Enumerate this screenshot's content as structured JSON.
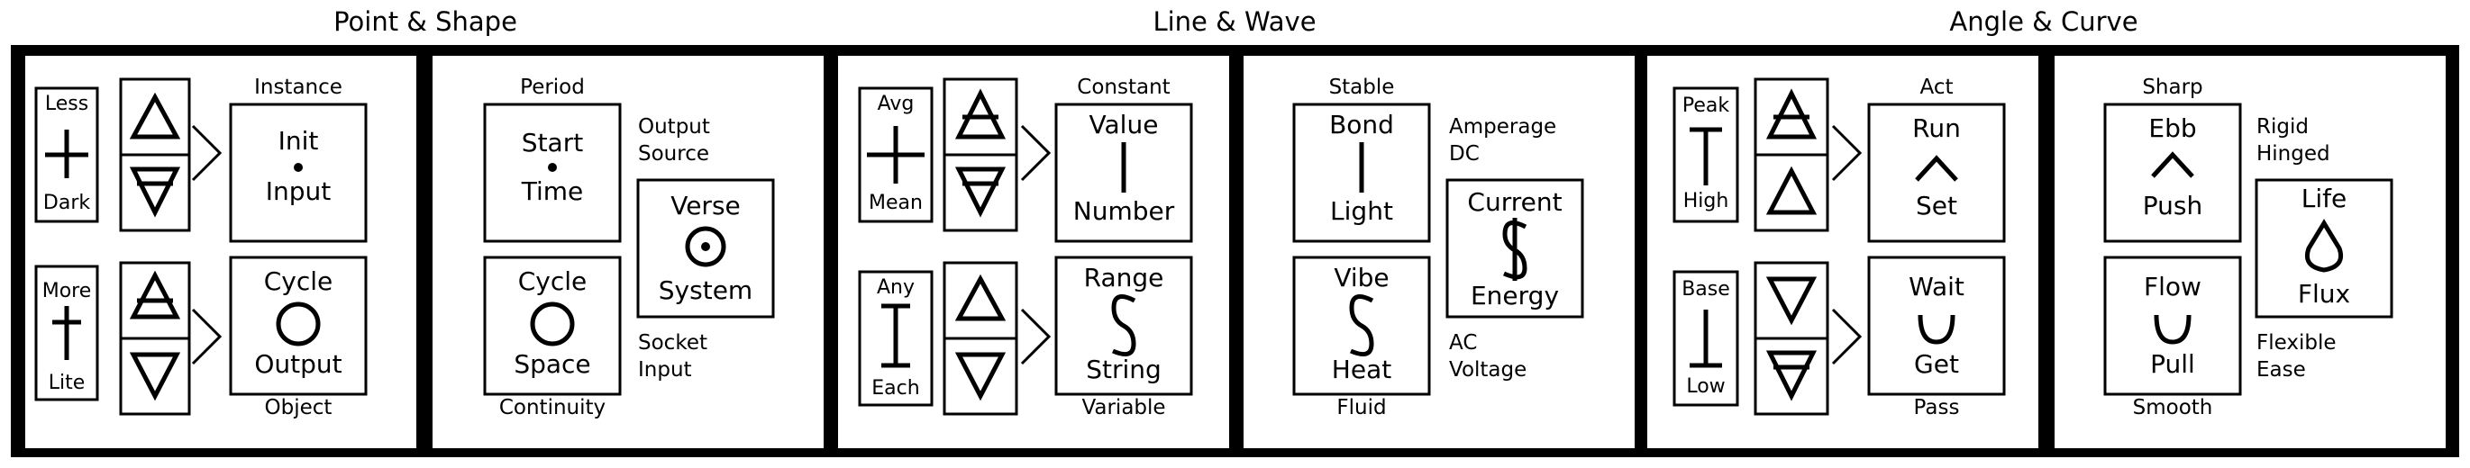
{
  "titles": {
    "left": "Point & Shape",
    "mid": "Line & Wave",
    "right": "Angle & Curve"
  },
  "panel1": {
    "top_box": {
      "label_top": "Less",
      "label_bottom": "Dark"
    },
    "bottom_box": {
      "label_top": "More",
      "label_bottom": "Lite"
    },
    "instance_label": "Instance",
    "object_label": "Object",
    "main_top": {
      "line1": "Init",
      "line2": "Input"
    },
    "main_bottom": {
      "line1": "Cycle",
      "line2": "Output"
    }
  },
  "panel2": {
    "period_label": "Period",
    "continuity_label": "Continuity",
    "box_top": {
      "line1": "Start",
      "line2": "Time"
    },
    "box_bottom": {
      "line1": "Cycle",
      "line2": "Space"
    },
    "right_top_label": [
      "Output",
      "Source"
    ],
    "right_box": {
      "line1": "Verse",
      "line2": "System"
    },
    "right_bottom_label": [
      "Socket",
      "Input"
    ]
  },
  "panel3": {
    "top_box": {
      "label_top": "Avg",
      "label_bottom": "Mean"
    },
    "bottom_box": {
      "label_top": "Any",
      "label_bottom": "Each"
    },
    "constant_label": "Constant",
    "variable_label": "Variable",
    "main_top": {
      "line1": "Value",
      "line2": "Number"
    },
    "main_bottom": {
      "line1": "Range",
      "line2": "String"
    }
  },
  "panel4": {
    "stable_label": "Stable",
    "fluid_label": "Fluid",
    "box_top": {
      "line1": "Bond",
      "line2": "Light"
    },
    "box_bottom": {
      "line1": "Vibe",
      "line2": "Heat"
    },
    "right_top_label": [
      "Amperage",
      "DC"
    ],
    "right_box": {
      "line1": "Current",
      "line2": "Energy"
    },
    "right_bottom_label": [
      "AC",
      "Voltage"
    ]
  },
  "panel5": {
    "top_box": {
      "label_top": "Peak",
      "label_bottom": "High"
    },
    "bottom_box": {
      "label_top": "Base",
      "label_bottom": "Low"
    },
    "act_label": "Act",
    "pass_label": "Pass",
    "main_top": {
      "line1": "Run",
      "line2": "Set"
    },
    "main_bottom": {
      "line1": "Wait",
      "line2": "Get"
    }
  },
  "panel6": {
    "sharp_label": "Sharp",
    "smooth_label": "Smooth",
    "box_top": {
      "line1": "Ebb",
      "line2": "Push"
    },
    "box_bottom": {
      "line1": "Flow",
      "line2": "Pull"
    },
    "right_top_label": [
      "Rigid",
      "Hinged"
    ],
    "right_box": {
      "line1": "Life",
      "line2": "Flux"
    },
    "right_bottom_label": [
      "Flexible",
      "Ease"
    ]
  },
  "icons": [
    "plus-icon",
    "dagger-icon",
    "up-triangle-icon",
    "down-triangle-icon",
    "up-triangle-bar-icon",
    "down-triangle-bar-icon",
    "dot-icon",
    "circle-icon",
    "circled-dot-icon",
    "vertical-bar-icon",
    "s-wave-icon",
    "dollar-icon",
    "i-beam-icon",
    "t-bar-icon",
    "inverted-t-icon",
    "caret-up-icon",
    "cup-icon",
    "drop-icon",
    "chevron-right-icon"
  ]
}
